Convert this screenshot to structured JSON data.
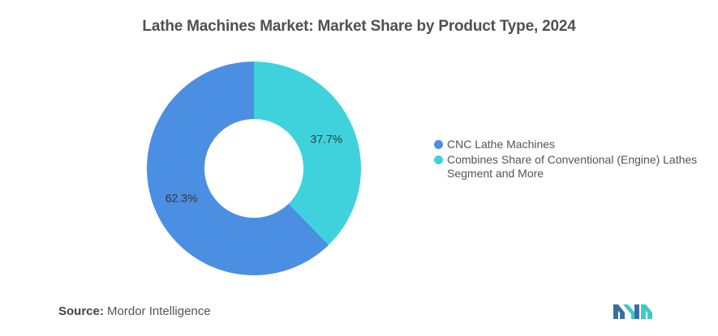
{
  "chart_data": {
    "type": "pie",
    "title": "Lathe Machines Market: Market Share by Product Type, 2024",
    "categories": [
      "CNC Lathe Machines",
      "Combines Share of Conventional (Engine) Lathes Segment and More"
    ],
    "values": [
      62.3,
      37.7
    ],
    "data_labels": [
      "62.3%",
      "37.7%"
    ],
    "colors": [
      "#4A8FE2",
      "#40D2DC"
    ],
    "donut": true,
    "legend_position": "right"
  },
  "legend": {
    "items": [
      {
        "label": "CNC Lathe Machines",
        "color": "#4A8FE2"
      },
      {
        "label": "Combines Share of Conventional (Engine) Lathes Segment and More",
        "color": "#40D2DC"
      }
    ]
  },
  "source": {
    "label": "Source:",
    "text": "Mordor Intelligence"
  },
  "logo": {
    "icon": "mordor-intelligence-logo",
    "colors": [
      "#3B6FA0",
      "#3FC8C8"
    ]
  }
}
